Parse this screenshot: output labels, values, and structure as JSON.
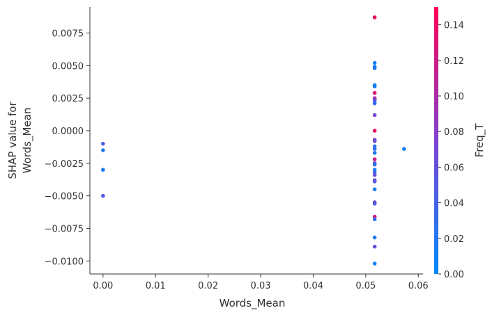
{
  "chart_data": {
    "type": "scatter",
    "title": "",
    "xlabel": "Words_Mean",
    "ylabel_lines": [
      "SHAP value for",
      "Words_Mean"
    ],
    "xlim": [
      -0.0025,
      0.0609
    ],
    "ylim": [
      -0.011,
      0.0095
    ],
    "x_ticks": [
      0.0,
      0.01,
      0.02,
      0.03,
      0.04,
      0.05,
      0.06
    ],
    "x_tick_labels": [
      "0.00",
      "0.01",
      "0.02",
      "0.03",
      "0.04",
      "0.05",
      "0.06"
    ],
    "y_ticks": [
      0.0075,
      0.005,
      0.0025,
      0.0,
      -0.0025,
      -0.005,
      -0.0075,
      -0.01
    ],
    "y_tick_labels": [
      "0.0075",
      "0.0050",
      "0.0025",
      "0.0000",
      "−0.0025",
      "−0.0050",
      "−0.0075",
      "−0.0100"
    ],
    "grid": false,
    "colorbar": {
      "label": "Freq_T",
      "range": [
        0.0,
        0.15
      ],
      "ticks": [
        0.0,
        0.02,
        0.04,
        0.06,
        0.08,
        0.1,
        0.12,
        0.14
      ],
      "tick_labels": [
        "0.00",
        "0.02",
        "0.04",
        "0.06",
        "0.08",
        "0.10",
        "0.12",
        "0.14"
      ],
      "colors": [
        "#008afb",
        "#7e41d2",
        "#ff0052"
      ]
    },
    "series": [
      {
        "points": [
          {
            "x": 0.0,
            "y": -0.001,
            "c": 0.045
          },
          {
            "x": 0.0,
            "y": -0.0015,
            "c": 0.02
          },
          {
            "x": 0.0,
            "y": -0.003,
            "c": 0.015
          },
          {
            "x": 0.0,
            "y": -0.005,
            "c": 0.05
          },
          {
            "x": 0.0517,
            "y": 0.0087,
            "c": 0.14
          },
          {
            "x": 0.0517,
            "y": 0.0052,
            "c": 0.01
          },
          {
            "x": 0.0517,
            "y": 0.0049,
            "c": 0.01
          },
          {
            "x": 0.0517,
            "y": 0.0048,
            "c": 0.015
          },
          {
            "x": 0.0517,
            "y": 0.0035,
            "c": 0.01
          },
          {
            "x": 0.0517,
            "y": 0.0034,
            "c": 0.015
          },
          {
            "x": 0.0517,
            "y": 0.0029,
            "c": 0.13
          },
          {
            "x": 0.0517,
            "y": 0.0025,
            "c": 0.11
          },
          {
            "x": 0.0517,
            "y": 0.0024,
            "c": 0.08
          },
          {
            "x": 0.0517,
            "y": 0.0023,
            "c": 0.05
          },
          {
            "x": 0.0517,
            "y": 0.0021,
            "c": 0.03
          },
          {
            "x": 0.0517,
            "y": 0.0012,
            "c": 0.07
          },
          {
            "x": 0.0517,
            "y": 0.0,
            "c": 0.14
          },
          {
            "x": 0.0517,
            "y": -0.0007,
            "c": 0.08
          },
          {
            "x": 0.0517,
            "y": -0.0008,
            "c": 0.06
          },
          {
            "x": 0.0517,
            "y": -0.0012,
            "c": 0.02
          },
          {
            "x": 0.0517,
            "y": -0.0014,
            "c": 0.03
          },
          {
            "x": 0.0517,
            "y": -0.0017,
            "c": 0.015
          },
          {
            "x": 0.0517,
            "y": -0.0022,
            "c": 0.12
          },
          {
            "x": 0.0517,
            "y": -0.0025,
            "c": 0.05
          },
          {
            "x": 0.0517,
            "y": -0.0026,
            "c": 0.03
          },
          {
            "x": 0.0517,
            "y": -0.003,
            "c": 0.01
          },
          {
            "x": 0.0517,
            "y": -0.0032,
            "c": 0.04
          },
          {
            "x": 0.0517,
            "y": -0.0034,
            "c": 0.06
          },
          {
            "x": 0.0517,
            "y": -0.0038,
            "c": 0.07
          },
          {
            "x": 0.0517,
            "y": -0.0039,
            "c": 0.05
          },
          {
            "x": 0.0517,
            "y": -0.0045,
            "c": 0.01
          },
          {
            "x": 0.0517,
            "y": -0.0055,
            "c": 0.07
          },
          {
            "x": 0.0517,
            "y": -0.0056,
            "c": 0.05
          },
          {
            "x": 0.0517,
            "y": -0.0066,
            "c": 0.12
          },
          {
            "x": 0.0517,
            "y": -0.0068,
            "c": 0.03
          },
          {
            "x": 0.0517,
            "y": -0.0082,
            "c": 0.015
          },
          {
            "x": 0.0517,
            "y": -0.0089,
            "c": 0.06
          },
          {
            "x": 0.0517,
            "y": -0.0102,
            "c": 0.01
          },
          {
            "x": 0.0573,
            "y": -0.0014,
            "c": 0.01
          }
        ]
      }
    ]
  }
}
